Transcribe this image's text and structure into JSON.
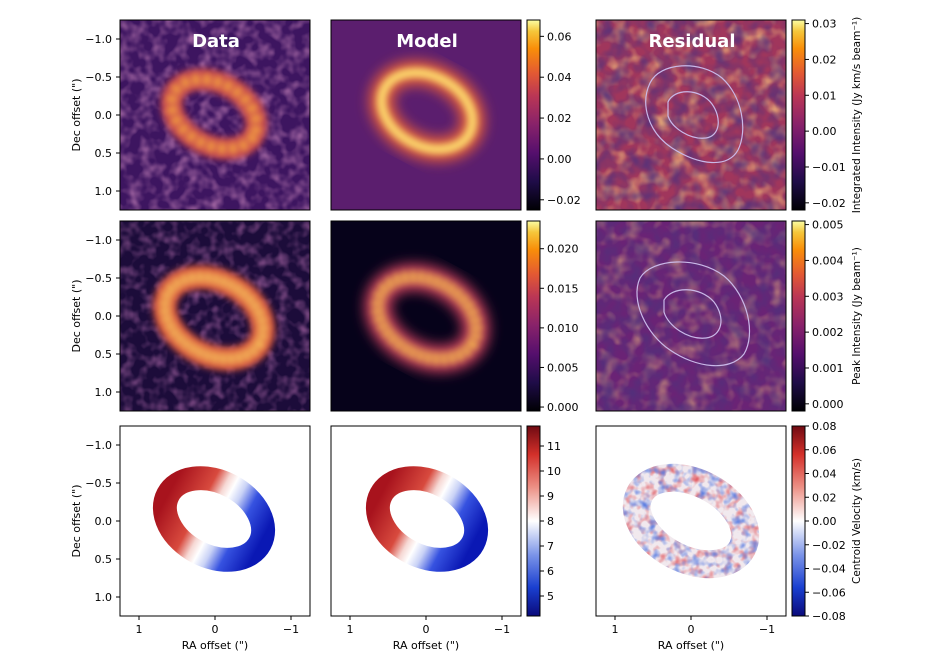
{
  "figure": {
    "column_titles": [
      "Data",
      "Model",
      "Residual"
    ],
    "colors": {
      "inferno_dark": "#0c0525",
      "inferno_mid": "#7b2a6b",
      "inferno_hot": "#f59f3a",
      "inferno_light": "#fcf29a",
      "contour": "#c9b8e8",
      "velocity_red": "#b2182b",
      "velocity_blue": "#00008b"
    }
  },
  "chart_data": [
    {
      "type": "heatmap",
      "row": "integrated-intensity",
      "panels": [
        "Data",
        "Model",
        "Residual"
      ],
      "ylabel": "Dec offset (\")",
      "yticks": [
        "−1.0",
        "−0.5",
        "0.0",
        "0.5",
        "1.0"
      ],
      "ytick_values": [
        -1.0,
        -0.5,
        0.0,
        0.5,
        1.0
      ],
      "extent": [
        1.25,
        -1.25,
        1.25,
        -1.25
      ],
      "colorbar_main": {
        "ticks": [
          "0.06",
          "0.04",
          "0.02",
          "0.00",
          "−0.02"
        ],
        "tick_values": [
          0.06,
          0.04,
          0.02,
          0.0,
          -0.02
        ],
        "range": [
          -0.025,
          0.068
        ]
      },
      "colorbar_residual": {
        "ticks": [
          "0.03",
          "0.02",
          "0.01",
          "0.00",
          "−0.01",
          "−0.02"
        ],
        "tick_values": [
          0.03,
          0.02,
          0.01,
          0.0,
          -0.01,
          -0.02
        ],
        "range": [
          -0.022,
          0.031
        ],
        "label": "Integrated Intensity (Jy km/s beam⁻¹)"
      }
    },
    {
      "type": "heatmap",
      "row": "peak-intensity",
      "panels": [
        "Data",
        "Model",
        "Residual"
      ],
      "ylabel": "Dec offset (\")",
      "yticks": [
        "−1.0",
        "−0.5",
        "0.0",
        "0.5",
        "1.0"
      ],
      "ytick_values": [
        -1.0,
        -0.5,
        0.0,
        0.5,
        1.0
      ],
      "extent": [
        1.25,
        -1.25,
        1.25,
        -1.25
      ],
      "colorbar_main": {
        "ticks": [
          "0.020",
          "0.015",
          "0.010",
          "0.005",
          "0.000"
        ],
        "tick_values": [
          0.02,
          0.015,
          0.01,
          0.005,
          0.0
        ],
        "range": [
          -0.0005,
          0.0235
        ]
      },
      "colorbar_residual": {
        "ticks": [
          "0.005",
          "0.004",
          "0.003",
          "0.002",
          "0.001",
          "0.000"
        ],
        "tick_values": [
          0.005,
          0.004,
          0.003,
          0.002,
          0.001,
          0.0
        ],
        "range": [
          -0.0002,
          0.0051
        ],
        "label": "Peak Intensity (Jy beam⁻¹)"
      }
    },
    {
      "type": "heatmap",
      "row": "centroid-velocity",
      "panels": [
        "Data",
        "Model",
        "Residual"
      ],
      "ylabel": "Dec offset (\")",
      "xlabel": "RA offset (\")",
      "yticks": [
        "−1.0",
        "−0.5",
        "0.0",
        "0.5",
        "1.0"
      ],
      "ytick_values": [
        -1.0,
        -0.5,
        0.0,
        0.5,
        1.0
      ],
      "xticks": [
        "1",
        "0",
        "−1"
      ],
      "xtick_values": [
        1,
        0,
        -1
      ],
      "extent": [
        1.25,
        -1.25,
        1.25,
        -1.25
      ],
      "colorbar_main": {
        "ticks": [
          "11",
          "10",
          "9",
          "8",
          "7",
          "6",
          "5"
        ],
        "tick_values": [
          11,
          10,
          9,
          8,
          7,
          6,
          5
        ],
        "range": [
          4.2,
          11.8
        ]
      },
      "colorbar_residual": {
        "ticks": [
          "0.08",
          "0.06",
          "0.04",
          "0.02",
          "0.00",
          "−0.02",
          "−0.04",
          "−0.06",
          "−0.08"
        ],
        "tick_values": [
          0.08,
          0.06,
          0.04,
          0.02,
          0.0,
          -0.02,
          -0.04,
          -0.06,
          -0.08
        ],
        "range": [
          -0.08,
          0.08
        ],
        "label": "Centroid Velocity (km/s)"
      }
    }
  ]
}
